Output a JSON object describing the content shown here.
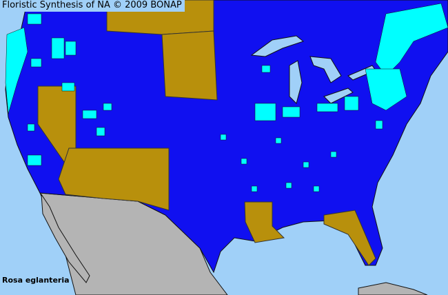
{
  "title": "Floristic Synthesis of NA © 2009 BONAP",
  "species": "Rosa eglanteria",
  "colors": {
    "ocean": "#a0d0f8",
    "present_native": "#1010f0",
    "present_county": "#00ffff",
    "absent": "#b8900c",
    "outside_region": "#b4b4b4",
    "borders": "#222222"
  }
}
